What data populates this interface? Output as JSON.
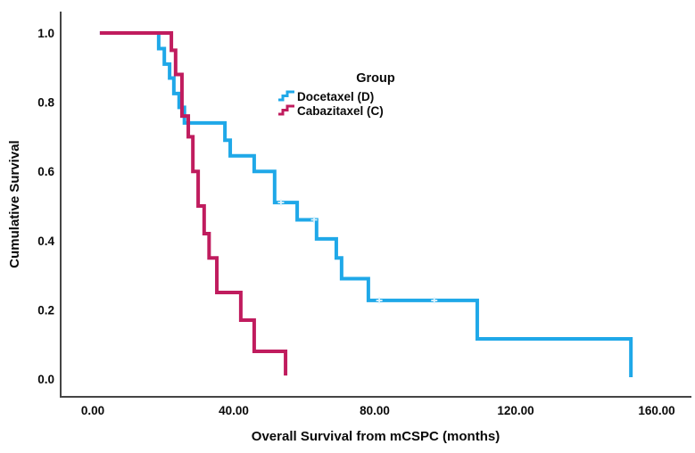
{
  "chart_data": {
    "type": "line",
    "subtype": "kaplan-meier-step-curve",
    "title": "",
    "xlabel": "Overall Survival from mCSPC (months)",
    "ylabel": "Cumulative Survival",
    "xticks": [
      0,
      40,
      80,
      120,
      160
    ],
    "xtick_labels": [
      "0.00",
      "40.00",
      "80.00",
      "120.00",
      "160.00"
    ],
    "yticks": [
      0.0,
      0.2,
      0.4,
      0.6,
      0.8,
      1.0
    ],
    "ytick_labels": [
      "0.0",
      "0.2",
      "0.4",
      "0.6",
      "0.8",
      "1.0"
    ],
    "xlim": [
      -9,
      170
    ],
    "ylim": [
      -0.05,
      1.06
    ],
    "grid": false,
    "legend": {
      "title": "Group",
      "position": "upper-center",
      "items": [
        {
          "label": "Docetaxel (D)",
          "color": "#1FA8E8",
          "icon": "step-line-icon"
        },
        {
          "label": "Cabazitaxel (C)",
          "color": "#C01C5E",
          "icon": "step-line-icon"
        }
      ]
    },
    "series": [
      {
        "name": "Docetaxel (D)",
        "color": "#1FA8E8",
        "start": [
          2,
          1.0
        ],
        "steps": [
          [
            18.7,
            0.955
          ],
          [
            20.3,
            0.91
          ],
          [
            21.8,
            0.87
          ],
          [
            23.0,
            0.825
          ],
          [
            24.5,
            0.785
          ],
          [
            26.0,
            0.74
          ],
          [
            37.5,
            0.69
          ],
          [
            39.0,
            0.645
          ],
          [
            45.8,
            0.6
          ],
          [
            51.6,
            0.51
          ],
          [
            58.0,
            0.46
          ],
          [
            63.5,
            0.405
          ],
          [
            69.1,
            0.35
          ],
          [
            70.6,
            0.29
          ],
          [
            78.2,
            0.227
          ],
          [
            109.1,
            0.116
          ],
          [
            152.7,
            0.005
          ]
        ],
        "censored": [
          [
            53.4,
            0.51
          ],
          [
            62.8,
            0.46
          ],
          [
            81.3,
            0.227
          ],
          [
            96.9,
            0.227
          ]
        ]
      },
      {
        "name": "Cabazitaxel (C)",
        "color": "#C01C5E",
        "start": [
          2,
          1.0
        ],
        "steps": [
          [
            22.3,
            0.95
          ],
          [
            23.5,
            0.88
          ],
          [
            25.3,
            0.76
          ],
          [
            27.1,
            0.7
          ],
          [
            28.4,
            0.6
          ],
          [
            29.9,
            0.5
          ],
          [
            31.6,
            0.42
          ],
          [
            33.0,
            0.35
          ],
          [
            35.2,
            0.25
          ],
          [
            42.0,
            0.17
          ],
          [
            45.8,
            0.08
          ],
          [
            54.7,
            0.01
          ]
        ],
        "censored": []
      }
    ],
    "axis_color": "#454545",
    "censor_mark_color": "#ddf2fc"
  }
}
